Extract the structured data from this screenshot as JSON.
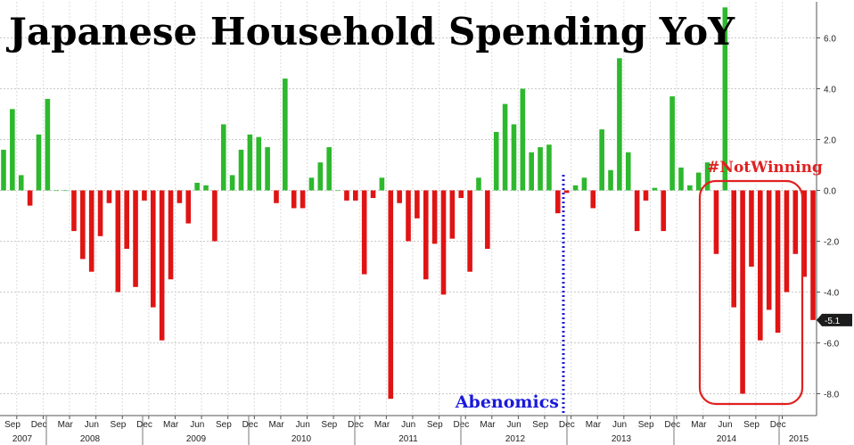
{
  "chart_data": {
    "type": "bar",
    "title": "Japanese Household Spending YoY",
    "xlabel": "",
    "ylabel": "",
    "ylim": [
      -8.9,
      7.5
    ],
    "y_ticks": [
      "6.0",
      "4.0",
      "2.0",
      "0.0",
      "-2.0",
      "-4.0",
      "-6.0",
      "-8.0"
    ],
    "y_tick_values": [
      6,
      4,
      2,
      0,
      -2,
      -4,
      -6,
      -8
    ],
    "last_value_label": "-5.1",
    "positive_color": "#2db82d",
    "negative_color": "#e01414",
    "grid": true,
    "x_month_labels": [
      "Sep",
      "Dec",
      "Mar",
      "Jun",
      "Sep",
      "Dec",
      "Mar",
      "Jun",
      "Sep",
      "Dec",
      "Mar",
      "Jun",
      "Sep",
      "Dec",
      "Mar",
      "Jun",
      "Sep",
      "Dec",
      "Mar",
      "Jun",
      "Sep",
      "Dec",
      "Mar",
      "Jun",
      "Sep",
      "Dec",
      "Mar",
      "Jun",
      "Sep",
      "Dec"
    ],
    "x_year_labels": [
      "2007",
      "2008",
      "2009",
      "2010",
      "2011",
      "2012",
      "2013",
      "2014",
      "2015"
    ],
    "values": [
      1.6,
      3.2,
      0.6,
      -0.6,
      2.2,
      3.6,
      0.0,
      0.0,
      -1.6,
      -2.7,
      -3.2,
      -1.8,
      -0.5,
      -4.0,
      -2.3,
      -3.8,
      -0.4,
      -4.6,
      -5.9,
      -3.5,
      -0.5,
      -1.3,
      0.3,
      0.2,
      -2.0,
      2.6,
      0.6,
      1.6,
      2.2,
      2.1,
      1.7,
      -0.5,
      4.4,
      -0.7,
      -0.7,
      0.5,
      1.1,
      1.7,
      0.0,
      -0.4,
      -0.4,
      -3.3,
      -0.3,
      0.5,
      -8.2,
      -0.5,
      -2.0,
      -1.1,
      -3.5,
      -2.1,
      -4.1,
      -1.9,
      -0.3,
      -3.2,
      0.5,
      -2.3,
      2.3,
      3.4,
      2.6,
      4.0,
      1.5,
      1.7,
      1.8,
      -0.9,
      -0.1,
      0.2,
      0.5,
      -0.7,
      2.4,
      0.8,
      5.2,
      1.5,
      -1.6,
      -0.4,
      0.1,
      -1.6,
      3.7,
      0.9,
      0.2,
      0.7,
      1.1,
      -2.5,
      7.2,
      -4.6,
      -8.0,
      -3.0,
      -5.9,
      -4.7,
      -5.6,
      -4.0,
      -2.5,
      -3.4,
      -5.1
    ],
    "annotations": [
      {
        "text": "Abenomics",
        "color": "#1a1adb",
        "style": "vertical dotted line at Dec 2012"
      },
      {
        "text": "#NotWinning",
        "color": "#e02020",
        "style": "rounded box around 2014 bars"
      }
    ]
  }
}
